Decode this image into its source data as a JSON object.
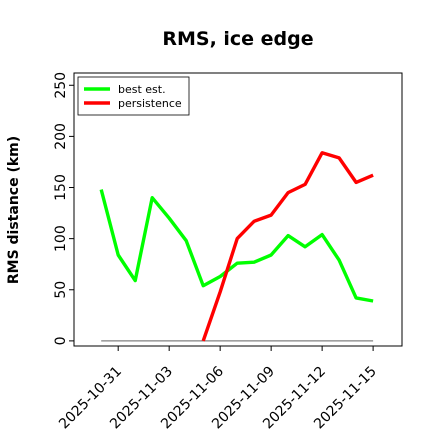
{
  "chart_data": {
    "type": "line",
    "title": "RMS, ice edge",
    "xlabel": "",
    "ylabel": "RMS distance (km)",
    "x_start": "2025-10-29",
    "ylim": [
      -5,
      262
    ],
    "y_ticks": [
      0,
      50,
      100,
      150,
      200,
      250
    ],
    "x_ticks": [
      {
        "day": 2,
        "label": "2025-10-31"
      },
      {
        "day": 5,
        "label": "2025-11-03"
      },
      {
        "day": 8,
        "label": "2025-11-06"
      },
      {
        "day": 11,
        "label": "2025-11-09"
      },
      {
        "day": 14,
        "label": "2025-11-12"
      },
      {
        "day": 17,
        "label": "2025-11-15"
      }
    ],
    "xlim": [
      -0.6,
      18.7
    ],
    "legend_position": "top-left",
    "series": [
      {
        "name": "best est.",
        "color": "#00ff00",
        "days": [
          1,
          2,
          3,
          4,
          5,
          6,
          7,
          8,
          9,
          10,
          11,
          12,
          13,
          14,
          15,
          16,
          17
        ],
        "values": [
          148,
          84,
          59,
          140,
          120,
          98,
          54,
          63,
          76,
          77,
          84,
          103,
          92,
          104,
          79,
          42,
          39
        ]
      },
      {
        "name": "persistence",
        "color": "#ff0000",
        "days": [
          7,
          8,
          9,
          10,
          11,
          12,
          13,
          14,
          15,
          16,
          17
        ],
        "values": [
          0,
          48,
          100,
          117,
          123,
          145,
          153,
          184,
          179,
          155,
          162
        ]
      },
      {
        "name": "",
        "color": "#808080",
        "days": [
          1,
          17
        ],
        "values": [
          0,
          0
        ]
      }
    ]
  }
}
